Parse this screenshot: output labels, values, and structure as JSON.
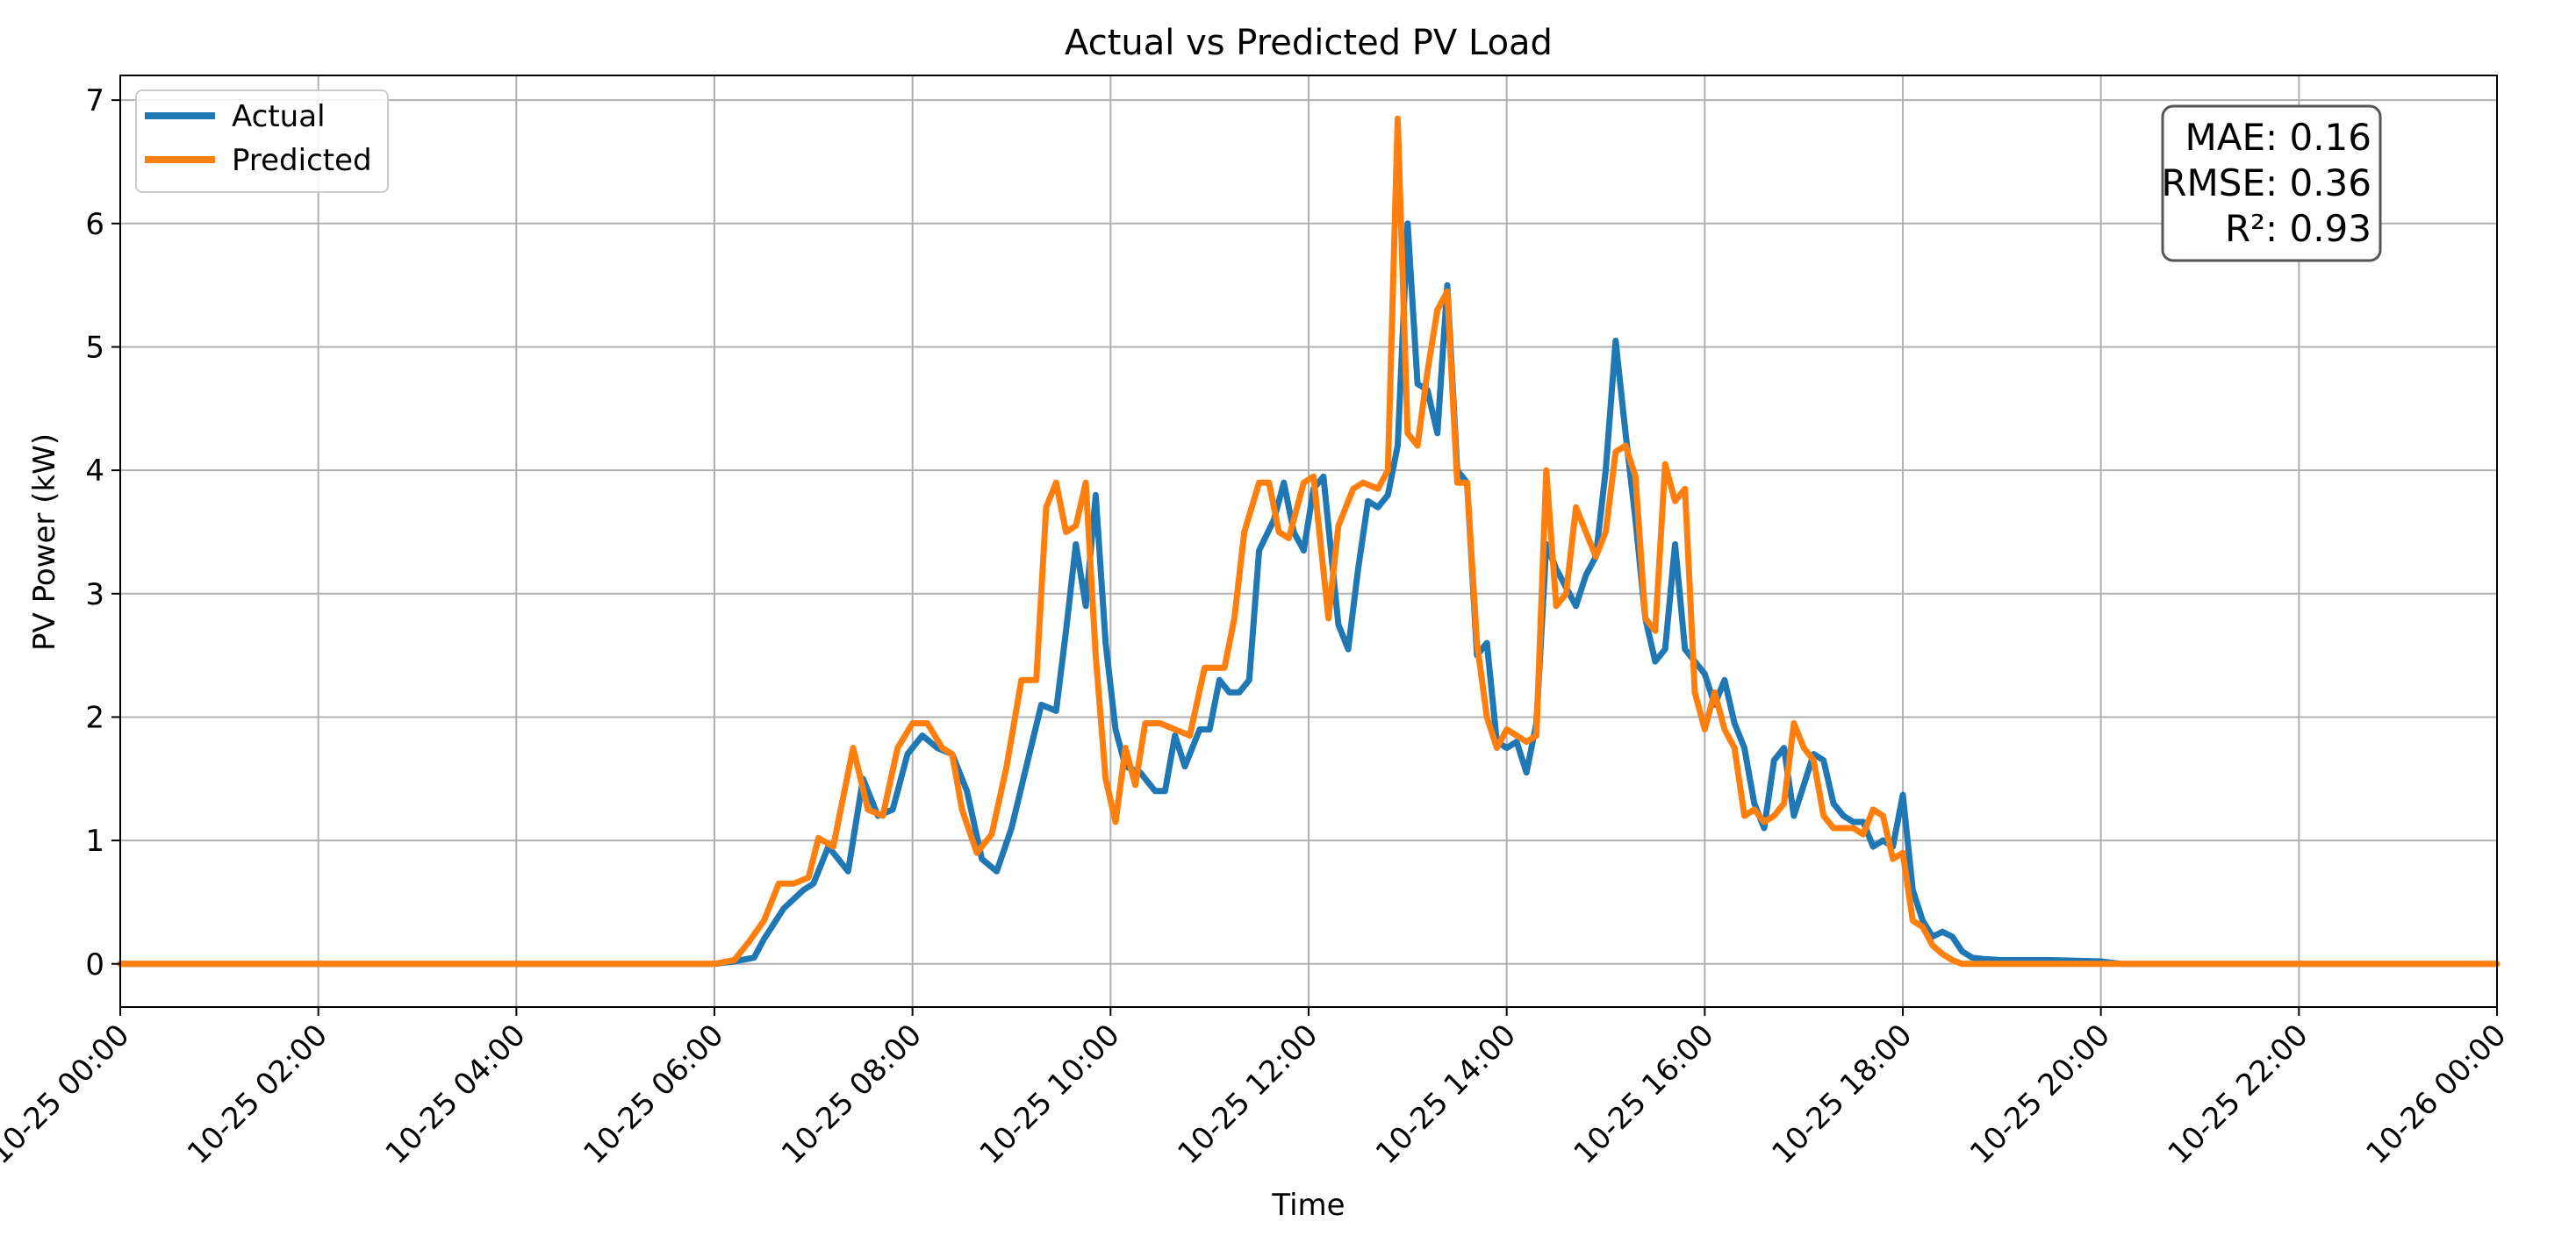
{
  "chart_data": {
    "type": "line",
    "title": "Actual vs Predicted PV Load",
    "xlabel": "Time",
    "ylabel": "PV Power (kW)",
    "xlim": [
      0,
      24
    ],
    "ylim": [
      -0.35,
      7.2
    ],
    "grid": true,
    "legend_position": "top-left",
    "yticks": [
      0,
      1,
      2,
      3,
      4,
      5,
      6,
      7
    ],
    "ytick_labels": [
      "0",
      "1",
      "2",
      "3",
      "4",
      "5",
      "6",
      "7"
    ],
    "xticks": [
      0,
      2,
      4,
      6,
      8,
      10,
      12,
      14,
      16,
      18,
      20,
      22,
      24
    ],
    "xtick_labels": [
      "10-25 00:00",
      "10-25 02:00",
      "10-25 04:00",
      "10-25 06:00",
      "10-25 08:00",
      "10-25 10:00",
      "10-25 12:00",
      "10-25 14:00",
      "10-25 16:00",
      "10-25 18:00",
      "10-25 20:00",
      "10-25 22:00",
      "10-26 00:00"
    ],
    "metrics": [
      "MAE: 0.16",
      "RMSE: 0.36",
      "R²: 0.93"
    ],
    "series": [
      {
        "name": "Actual",
        "color": "#1f77b4",
        "points": [
          [
            0,
            0
          ],
          [
            6.0,
            0
          ],
          [
            6.2,
            0.02
          ],
          [
            6.4,
            0.05
          ],
          [
            6.5,
            0.2
          ],
          [
            6.7,
            0.45
          ],
          [
            6.9,
            0.6
          ],
          [
            7.0,
            0.65
          ],
          [
            7.15,
            0.95
          ],
          [
            7.35,
            0.75
          ],
          [
            7.5,
            1.5
          ],
          [
            7.65,
            1.2
          ],
          [
            7.8,
            1.25
          ],
          [
            7.95,
            1.7
          ],
          [
            8.1,
            1.85
          ],
          [
            8.25,
            1.75
          ],
          [
            8.4,
            1.7
          ],
          [
            8.55,
            1.4
          ],
          [
            8.7,
            0.85
          ],
          [
            8.85,
            0.75
          ],
          [
            9.0,
            1.1
          ],
          [
            9.15,
            1.6
          ],
          [
            9.3,
            2.1
          ],
          [
            9.45,
            2.05
          ],
          [
            9.55,
            2.7
          ],
          [
            9.65,
            3.4
          ],
          [
            9.75,
            2.9
          ],
          [
            9.85,
            3.8
          ],
          [
            9.95,
            2.6
          ],
          [
            10.05,
            1.9
          ],
          [
            10.15,
            1.6
          ],
          [
            10.3,
            1.55
          ],
          [
            10.45,
            1.4
          ],
          [
            10.55,
            1.4
          ],
          [
            10.65,
            1.85
          ],
          [
            10.75,
            1.6
          ],
          [
            10.9,
            1.9
          ],
          [
            11.0,
            1.9
          ],
          [
            11.1,
            2.3
          ],
          [
            11.2,
            2.2
          ],
          [
            11.3,
            2.2
          ],
          [
            11.4,
            2.3
          ],
          [
            11.5,
            3.35
          ],
          [
            11.65,
            3.6
          ],
          [
            11.75,
            3.9
          ],
          [
            11.85,
            3.5
          ],
          [
            11.95,
            3.35
          ],
          [
            12.05,
            3.85
          ],
          [
            12.15,
            3.95
          ],
          [
            12.3,
            2.75
          ],
          [
            12.4,
            2.55
          ],
          [
            12.5,
            3.2
          ],
          [
            12.6,
            3.75
          ],
          [
            12.7,
            3.7
          ],
          [
            12.8,
            3.8
          ],
          [
            12.9,
            4.2
          ],
          [
            13.0,
            6.0
          ],
          [
            13.1,
            4.7
          ],
          [
            13.2,
            4.65
          ],
          [
            13.3,
            4.3
          ],
          [
            13.4,
            5.5
          ],
          [
            13.5,
            4.0
          ],
          [
            13.6,
            3.9
          ],
          [
            13.7,
            2.5
          ],
          [
            13.8,
            2.6
          ],
          [
            13.9,
            1.8
          ],
          [
            14.0,
            1.75
          ],
          [
            14.1,
            1.8
          ],
          [
            14.2,
            1.55
          ],
          [
            14.3,
            1.95
          ],
          [
            14.4,
            3.4
          ],
          [
            14.5,
            3.2
          ],
          [
            14.6,
            3.05
          ],
          [
            14.7,
            2.9
          ],
          [
            14.8,
            3.15
          ],
          [
            14.9,
            3.3
          ],
          [
            15.0,
            4.0
          ],
          [
            15.1,
            5.05
          ],
          [
            15.2,
            4.3
          ],
          [
            15.3,
            3.6
          ],
          [
            15.4,
            2.8
          ],
          [
            15.5,
            2.45
          ],
          [
            15.6,
            2.55
          ],
          [
            15.7,
            3.4
          ],
          [
            15.8,
            2.55
          ],
          [
            15.9,
            2.45
          ],
          [
            16.0,
            2.35
          ],
          [
            16.1,
            2.1
          ],
          [
            16.2,
            2.3
          ],
          [
            16.3,
            1.95
          ],
          [
            16.4,
            1.75
          ],
          [
            16.5,
            1.3
          ],
          [
            16.6,
            1.1
          ],
          [
            16.7,
            1.65
          ],
          [
            16.8,
            1.75
          ],
          [
            16.9,
            1.2
          ],
          [
            17.0,
            1.45
          ],
          [
            17.1,
            1.7
          ],
          [
            17.2,
            1.65
          ],
          [
            17.3,
            1.3
          ],
          [
            17.4,
            1.2
          ],
          [
            17.5,
            1.15
          ],
          [
            17.6,
            1.15
          ],
          [
            17.7,
            0.95
          ],
          [
            17.8,
            1.0
          ],
          [
            17.9,
            0.95
          ],
          [
            18.0,
            1.37
          ],
          [
            18.1,
            0.6
          ],
          [
            18.2,
            0.35
          ],
          [
            18.3,
            0.22
          ],
          [
            18.4,
            0.26
          ],
          [
            18.5,
            0.22
          ],
          [
            18.6,
            0.1
          ],
          [
            18.7,
            0.05
          ],
          [
            18.8,
            0.04
          ],
          [
            19.0,
            0.03
          ],
          [
            19.5,
            0.03
          ],
          [
            20.0,
            0.02
          ],
          [
            20.2,
            0
          ],
          [
            24,
            0
          ]
        ]
      },
      {
        "name": "Predicted",
        "color": "#ff7f0e",
        "points": [
          [
            0,
            0
          ],
          [
            6.0,
            0
          ],
          [
            6.2,
            0.03
          ],
          [
            6.35,
            0.18
          ],
          [
            6.5,
            0.35
          ],
          [
            6.65,
            0.65
          ],
          [
            6.8,
            0.65
          ],
          [
            6.95,
            0.7
          ],
          [
            7.05,
            1.02
          ],
          [
            7.2,
            0.95
          ],
          [
            7.4,
            1.75
          ],
          [
            7.55,
            1.25
          ],
          [
            7.7,
            1.2
          ],
          [
            7.85,
            1.75
          ],
          [
            8.0,
            1.95
          ],
          [
            8.15,
            1.95
          ],
          [
            8.3,
            1.75
          ],
          [
            8.4,
            1.7
          ],
          [
            8.5,
            1.25
          ],
          [
            8.65,
            0.9
          ],
          [
            8.8,
            1.05
          ],
          [
            8.95,
            1.6
          ],
          [
            9.1,
            2.3
          ],
          [
            9.25,
            2.3
          ],
          [
            9.35,
            3.7
          ],
          [
            9.45,
            3.9
          ],
          [
            9.55,
            3.5
          ],
          [
            9.65,
            3.55
          ],
          [
            9.75,
            3.9
          ],
          [
            9.85,
            2.5
          ],
          [
            9.95,
            1.5
          ],
          [
            10.05,
            1.15
          ],
          [
            10.15,
            1.75
          ],
          [
            10.25,
            1.45
          ],
          [
            10.35,
            1.95
          ],
          [
            10.5,
            1.95
          ],
          [
            10.65,
            1.9
          ],
          [
            10.8,
            1.85
          ],
          [
            10.95,
            2.4
          ],
          [
            11.05,
            2.4
          ],
          [
            11.15,
            2.4
          ],
          [
            11.25,
            2.8
          ],
          [
            11.35,
            3.5
          ],
          [
            11.5,
            3.9
          ],
          [
            11.6,
            3.9
          ],
          [
            11.7,
            3.5
          ],
          [
            11.8,
            3.45
          ],
          [
            11.95,
            3.9
          ],
          [
            12.05,
            3.95
          ],
          [
            12.2,
            2.8
          ],
          [
            12.3,
            3.55
          ],
          [
            12.45,
            3.85
          ],
          [
            12.55,
            3.9
          ],
          [
            12.7,
            3.85
          ],
          [
            12.8,
            4.0
          ],
          [
            12.9,
            6.85
          ],
          [
            13.0,
            4.3
          ],
          [
            13.1,
            4.2
          ],
          [
            13.2,
            4.8
          ],
          [
            13.3,
            5.3
          ],
          [
            13.4,
            5.45
          ],
          [
            13.5,
            3.9
          ],
          [
            13.6,
            3.9
          ],
          [
            13.7,
            2.6
          ],
          [
            13.8,
            2.0
          ],
          [
            13.9,
            1.75
          ],
          [
            14.0,
            1.9
          ],
          [
            14.1,
            1.85
          ],
          [
            14.2,
            1.8
          ],
          [
            14.3,
            1.85
          ],
          [
            14.4,
            4.0
          ],
          [
            14.5,
            2.9
          ],
          [
            14.6,
            3.0
          ],
          [
            14.7,
            3.7
          ],
          [
            14.8,
            3.5
          ],
          [
            14.9,
            3.3
          ],
          [
            15.0,
            3.5
          ],
          [
            15.1,
            4.15
          ],
          [
            15.2,
            4.2
          ],
          [
            15.3,
            3.95
          ],
          [
            15.4,
            2.8
          ],
          [
            15.5,
            2.7
          ],
          [
            15.6,
            4.05
          ],
          [
            15.7,
            3.75
          ],
          [
            15.8,
            3.85
          ],
          [
            15.9,
            2.2
          ],
          [
            16.0,
            1.9
          ],
          [
            16.1,
            2.2
          ],
          [
            16.2,
            1.9
          ],
          [
            16.3,
            1.75
          ],
          [
            16.4,
            1.2
          ],
          [
            16.5,
            1.25
          ],
          [
            16.6,
            1.15
          ],
          [
            16.7,
            1.2
          ],
          [
            16.8,
            1.3
          ],
          [
            16.9,
            1.95
          ],
          [
            17.0,
            1.75
          ],
          [
            17.1,
            1.65
          ],
          [
            17.2,
            1.2
          ],
          [
            17.3,
            1.1
          ],
          [
            17.4,
            1.1
          ],
          [
            17.5,
            1.1
          ],
          [
            17.6,
            1.05
          ],
          [
            17.7,
            1.25
          ],
          [
            17.8,
            1.2
          ],
          [
            17.9,
            0.85
          ],
          [
            18.0,
            0.9
          ],
          [
            18.1,
            0.35
          ],
          [
            18.2,
            0.3
          ],
          [
            18.3,
            0.15
          ],
          [
            18.4,
            0.08
          ],
          [
            18.5,
            0.03
          ],
          [
            18.6,
            0
          ],
          [
            24,
            0
          ]
        ]
      }
    ]
  }
}
